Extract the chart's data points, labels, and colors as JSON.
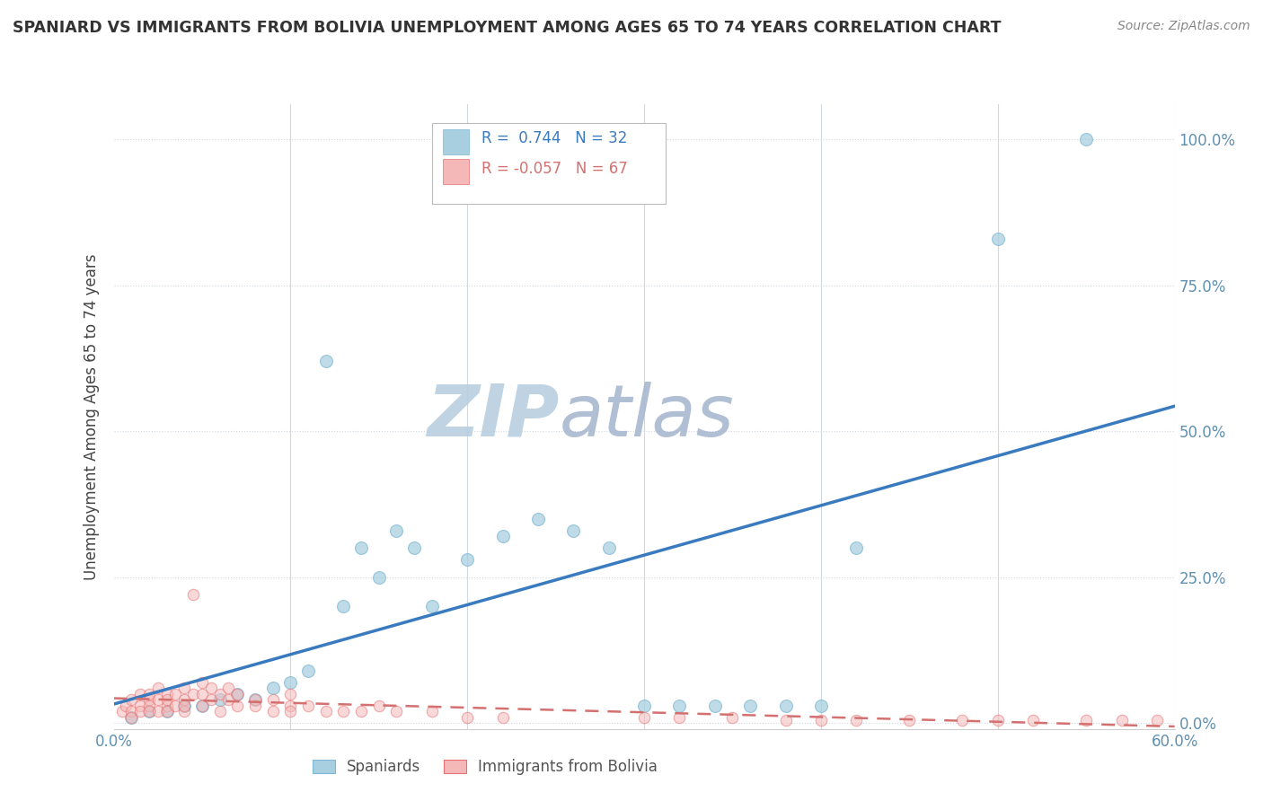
{
  "title": "SPANIARD VS IMMIGRANTS FROM BOLIVIA UNEMPLOYMENT AMONG AGES 65 TO 74 YEARS CORRELATION CHART",
  "source": "Source: ZipAtlas.com",
  "ylabel": "Unemployment Among Ages 65 to 74 years",
  "xlim": [
    0.0,
    0.6
  ],
  "ylim": [
    -0.01,
    1.06
  ],
  "ytick_positions": [
    0.0,
    0.25,
    0.5,
    0.75,
    1.0
  ],
  "ytick_labels": [
    "0.0%",
    "25.0%",
    "50.0%",
    "75.0%",
    "100.0%"
  ],
  "spaniards_x": [
    0.01,
    0.02,
    0.03,
    0.04,
    0.05,
    0.06,
    0.07,
    0.08,
    0.09,
    0.1,
    0.11,
    0.12,
    0.13,
    0.14,
    0.15,
    0.16,
    0.17,
    0.18,
    0.2,
    0.22,
    0.24,
    0.26,
    0.28,
    0.3,
    0.32,
    0.34,
    0.36,
    0.38,
    0.4,
    0.42,
    0.5,
    0.55
  ],
  "spaniards_y": [
    0.01,
    0.02,
    0.02,
    0.03,
    0.03,
    0.04,
    0.05,
    0.04,
    0.06,
    0.07,
    0.09,
    0.62,
    0.2,
    0.3,
    0.25,
    0.33,
    0.3,
    0.2,
    0.28,
    0.32,
    0.35,
    0.33,
    0.3,
    0.03,
    0.03,
    0.03,
    0.03,
    0.03,
    0.03,
    0.3,
    0.83,
    1.0
  ],
  "bolivia_x": [
    0.005,
    0.007,
    0.01,
    0.01,
    0.01,
    0.015,
    0.015,
    0.015,
    0.02,
    0.02,
    0.02,
    0.02,
    0.025,
    0.025,
    0.025,
    0.03,
    0.03,
    0.03,
    0.03,
    0.035,
    0.035,
    0.04,
    0.04,
    0.04,
    0.04,
    0.045,
    0.045,
    0.05,
    0.05,
    0.05,
    0.055,
    0.055,
    0.06,
    0.06,
    0.065,
    0.065,
    0.07,
    0.07,
    0.08,
    0.08,
    0.09,
    0.09,
    0.1,
    0.1,
    0.1,
    0.11,
    0.12,
    0.13,
    0.14,
    0.15,
    0.16,
    0.18,
    0.2,
    0.22,
    0.3,
    0.32,
    0.35,
    0.38,
    0.4,
    0.42,
    0.45,
    0.48,
    0.5,
    0.52,
    0.55,
    0.57,
    0.59
  ],
  "bolivia_y": [
    0.02,
    0.03,
    0.02,
    0.04,
    0.01,
    0.03,
    0.05,
    0.02,
    0.04,
    0.03,
    0.05,
    0.02,
    0.04,
    0.06,
    0.02,
    0.03,
    0.05,
    0.02,
    0.04,
    0.03,
    0.05,
    0.02,
    0.04,
    0.06,
    0.03,
    0.22,
    0.05,
    0.03,
    0.05,
    0.07,
    0.04,
    0.06,
    0.02,
    0.05,
    0.04,
    0.06,
    0.03,
    0.05,
    0.04,
    0.03,
    0.02,
    0.04,
    0.03,
    0.05,
    0.02,
    0.03,
    0.02,
    0.02,
    0.02,
    0.03,
    0.02,
    0.02,
    0.01,
    0.01,
    0.01,
    0.01,
    0.01,
    0.005,
    0.005,
    0.005,
    0.005,
    0.005,
    0.005,
    0.005,
    0.005,
    0.005,
    0.005
  ],
  "spaniard_color": "#a8cfe0",
  "spaniard_edge_color": "#7eb8d4",
  "bolivia_color": "#f4b8b8",
  "bolivia_edge_color": "#e87070",
  "spaniard_line_color": "#3a7bbf",
  "bolivia_line_color": "#d47070",
  "R_spaniard": 0.744,
  "N_spaniard": 32,
  "R_bolivia": -0.057,
  "N_bolivia": 67,
  "watermark": "ZIPatlas",
  "watermark_color_zip": "#b8cfe0",
  "watermark_color_atlas": "#a8b8d0",
  "grid_color": "#d0d8e0",
  "background_color": "#ffffff",
  "title_color": "#333333",
  "source_color": "#888888",
  "tick_color": "#6090b0",
  "ylabel_color": "#444444"
}
